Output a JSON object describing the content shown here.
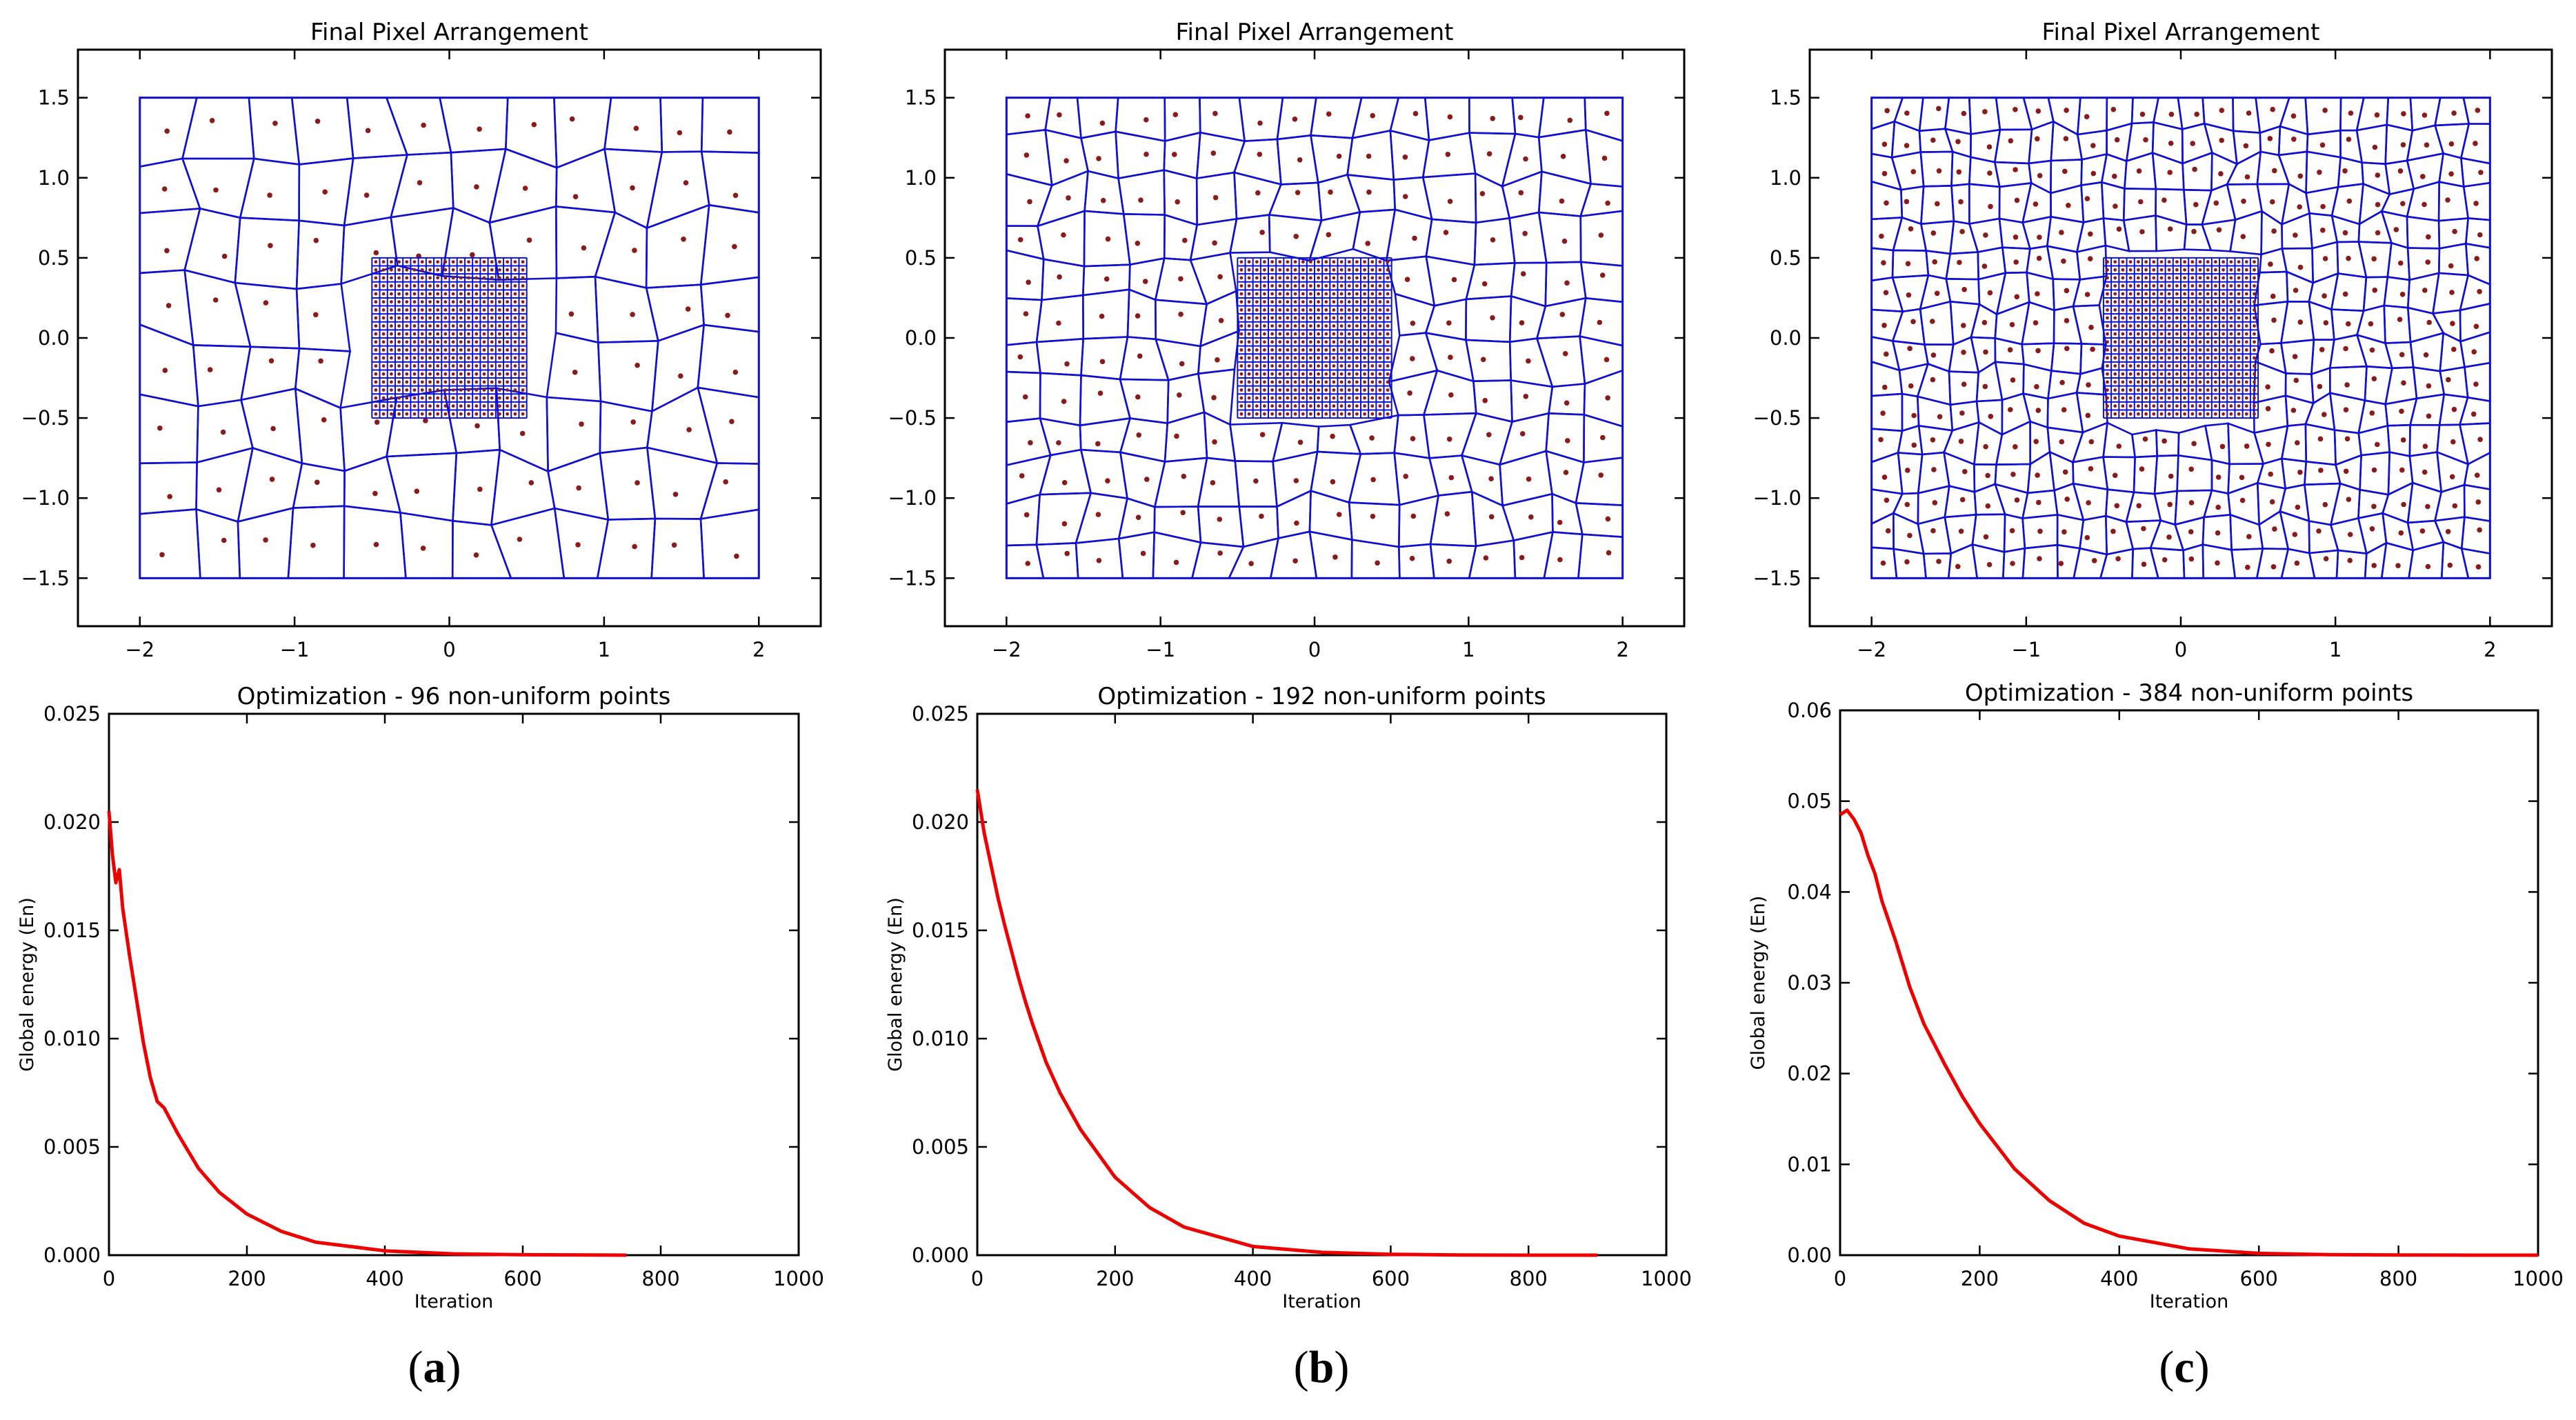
{
  "colors": {
    "cell_edge": "#1010d0",
    "site_point": "#8b1a1a",
    "energy_line": "#ee0000",
    "axis": "#000000"
  },
  "captions": [
    {
      "open": "(",
      "letter": "a",
      "close": ")"
    },
    {
      "open": "(",
      "letter": "b",
      "close": ")"
    },
    {
      "open": "(",
      "letter": "c",
      "close": ")"
    }
  ],
  "chart_data": [
    {
      "type": "scatter",
      "id": "arrangement-a",
      "title": "Final Pixel Arrangement",
      "xlim": [
        -2.4,
        2.4
      ],
      "ylim": [
        -1.8,
        1.8
      ],
      "xticks": [
        -2,
        -1,
        0,
        1,
        2
      ],
      "yticks": [
        -1.5,
        -1.0,
        -0.5,
        0.0,
        0.5,
        1.0,
        1.5
      ],
      "xtick_labels": [
        "−2",
        "−1",
        "0",
        "1",
        "2"
      ],
      "ytick_labels": [
        "−1.5",
        "−1.0",
        "−0.5",
        "0.0",
        "0.5",
        "1.0",
        "1.5"
      ],
      "domain": {
        "x": [
          -2,
          2
        ],
        "y": [
          -1.5,
          1.5
        ]
      },
      "outer_points": 96,
      "outer_grid": [
        12,
        8
      ],
      "inner_region": {
        "x": [
          -0.5,
          0.5
        ],
        "y": [
          -0.5,
          0.5
        ]
      },
      "inner_grid": [
        20,
        20
      ]
    },
    {
      "type": "scatter",
      "id": "arrangement-b",
      "title": "Final Pixel Arrangement",
      "xlim": [
        -2.4,
        2.4
      ],
      "ylim": [
        -1.8,
        1.8
      ],
      "xticks": [
        -2,
        -1,
        0,
        1,
        2
      ],
      "yticks": [
        -1.5,
        -1.0,
        -0.5,
        0.0,
        0.5,
        1.0,
        1.5
      ],
      "xtick_labels": [
        "−2",
        "−1",
        "0",
        "1",
        "2"
      ],
      "ytick_labels": [
        "−1.5",
        "−1.0",
        "−0.5",
        "0.0",
        "0.5",
        "1.0",
        "1.5"
      ],
      "domain": {
        "x": [
          -2,
          2
        ],
        "y": [
          -1.5,
          1.5
        ]
      },
      "outer_points": 192,
      "outer_grid": [
        16,
        12
      ],
      "inner_region": {
        "x": [
          -0.5,
          0.5
        ],
        "y": [
          -0.5,
          0.5
        ]
      },
      "inner_grid": [
        20,
        20
      ]
    },
    {
      "type": "scatter",
      "id": "arrangement-c",
      "title": "Final Pixel Arrangement",
      "xlim": [
        -2.4,
        2.4
      ],
      "ylim": [
        -1.8,
        1.8
      ],
      "xticks": [
        -2,
        -1,
        0,
        1,
        2
      ],
      "yticks": [
        -1.5,
        -1.0,
        -0.5,
        0.0,
        0.5,
        1.0,
        1.5
      ],
      "xtick_labels": [
        "−2",
        "−1",
        "0",
        "1",
        "2"
      ],
      "ytick_labels": [
        "−1.5",
        "−1.0",
        "−0.5",
        "0.0",
        "0.5",
        "1.0",
        "1.5"
      ],
      "domain": {
        "x": [
          -2,
          2
        ],
        "y": [
          -1.5,
          1.5
        ]
      },
      "outer_points": 384,
      "outer_grid": [
        24,
        16
      ],
      "inner_region": {
        "x": [
          -0.5,
          0.5
        ],
        "y": [
          -0.5,
          0.5
        ]
      },
      "inner_grid": [
        20,
        20
      ]
    },
    {
      "type": "line",
      "id": "energy-a",
      "title": "Optimization - 96 non-uniform points",
      "xlabel": "Iteration",
      "ylabel": "Global energy (En)",
      "xlim": [
        0,
        1000
      ],
      "ylim": [
        0,
        0.025
      ],
      "xticks": [
        0,
        200,
        400,
        600,
        800,
        1000
      ],
      "yticks": [
        0.0,
        0.005,
        0.01,
        0.015,
        0.02,
        0.025
      ],
      "xtick_labels": [
        "0",
        "200",
        "400",
        "600",
        "800",
        "1000"
      ],
      "ytick_labels": [
        "0.000",
        "0.005",
        "0.010",
        "0.015",
        "0.020",
        "0.025"
      ],
      "series": [
        {
          "name": "energy",
          "x": [
            0,
            5,
            10,
            15,
            20,
            30,
            40,
            50,
            60,
            70,
            80,
            100,
            130,
            160,
            200,
            250,
            300,
            400,
            500,
            600,
            750
          ],
          "y": [
            0.0205,
            0.0185,
            0.0172,
            0.0178,
            0.016,
            0.0138,
            0.0118,
            0.0098,
            0.0082,
            0.0071,
            0.0068,
            0.0056,
            0.004,
            0.0029,
            0.0019,
            0.0011,
            0.0006,
            0.0002,
            6e-05,
            2e-05,
            0.0
          ]
        }
      ]
    },
    {
      "type": "line",
      "id": "energy-b",
      "title": "Optimization - 192 non-uniform points",
      "xlabel": "Iteration",
      "ylabel": "Global energy (En)",
      "xlim": [
        0,
        1000
      ],
      "ylim": [
        0,
        0.025
      ],
      "xticks": [
        0,
        200,
        400,
        600,
        800,
        1000
      ],
      "yticks": [
        0.0,
        0.005,
        0.01,
        0.015,
        0.02,
        0.025
      ],
      "xtick_labels": [
        "0",
        "200",
        "400",
        "600",
        "800",
        "1000"
      ],
      "ytick_labels": [
        "0.000",
        "0.005",
        "0.010",
        "0.015",
        "0.020",
        "0.025"
      ],
      "series": [
        {
          "name": "energy",
          "x": [
            0,
            10,
            20,
            30,
            40,
            50,
            60,
            70,
            80,
            100,
            120,
            150,
            200,
            250,
            300,
            400,
            500,
            600,
            700,
            800,
            900
          ],
          "y": [
            0.0215,
            0.0195,
            0.018,
            0.0165,
            0.0152,
            0.014,
            0.0128,
            0.0117,
            0.0107,
            0.0089,
            0.0075,
            0.0058,
            0.0036,
            0.0022,
            0.0013,
            0.0004,
            0.00013,
            4e-05,
            1e-05,
            0.0,
            0.0
          ]
        }
      ]
    },
    {
      "type": "line",
      "id": "energy-c",
      "title": "Optimization - 384 non-uniform points",
      "xlabel": "Iteration",
      "ylabel": "Global energy (En)",
      "xlim": [
        0,
        1000
      ],
      "ylim": [
        0,
        0.06
      ],
      "xticks": [
        0,
        200,
        400,
        600,
        800,
        1000
      ],
      "yticks": [
        0.0,
        0.01,
        0.02,
        0.03,
        0.04,
        0.05,
        0.06
      ],
      "xtick_labels": [
        "0",
        "200",
        "400",
        "600",
        "800",
        "1000"
      ],
      "ytick_labels": [
        "0.00",
        "0.01",
        "0.02",
        "0.03",
        "0.04",
        "0.05",
        "0.06"
      ],
      "series": [
        {
          "name": "energy",
          "x": [
            0,
            10,
            20,
            30,
            40,
            50,
            60,
            80,
            100,
            120,
            150,
            175,
            200,
            250,
            300,
            350,
            400,
            500,
            600,
            700,
            800,
            900,
            1000
          ],
          "y": [
            0.0485,
            0.049,
            0.048,
            0.0465,
            0.044,
            0.042,
            0.039,
            0.0345,
            0.0295,
            0.0255,
            0.021,
            0.0175,
            0.0145,
            0.0095,
            0.006,
            0.0035,
            0.0021,
            0.0007,
            0.0002,
            6e-05,
            2e-05,
            0.0,
            0.0
          ]
        }
      ]
    }
  ]
}
